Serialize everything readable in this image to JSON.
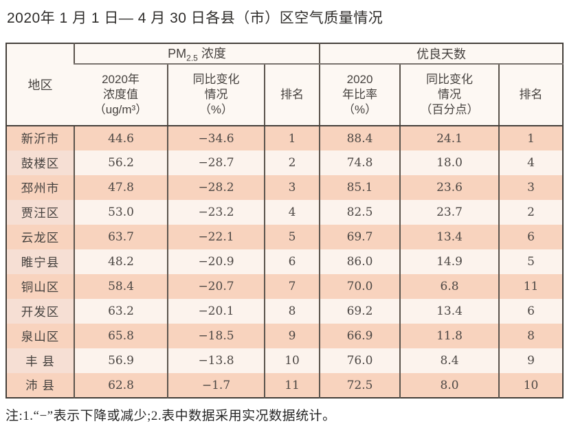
{
  "page": {
    "title": "2020年 1 月 1 日— 4 月 30 日各县（市）区空气质量情况",
    "footnote": "注:1.“−”表示下降或减少;2.表中数据采用实况数据统计。"
  },
  "colors": {
    "outer_border": "#443f3a",
    "inner_border": "#5a534c",
    "header_bg": "#fdf8f3",
    "row_odd_bg": "#f8d3be",
    "row_even_bg": "#fcf3ed",
    "region_even_bg": "#f6dfd4",
    "text": "#45413e"
  },
  "table": {
    "group_headers": {
      "region": "地区",
      "pm25_prefix": "PM",
      "pm25_sub": "2.5",
      "pm25_suffix": " 浓度",
      "good_days": "优良天数"
    },
    "sub_headers": {
      "pm_value": "2020年\n浓度值\n（ug/m³）",
      "pm_change": "同比变化\n情况\n（%）",
      "pm_rank": "排名",
      "good_ratio": "2020\n年比率\n（%）",
      "good_change": "同比变化\n情况\n（百分点）",
      "good_rank": "排名"
    },
    "rows": [
      {
        "region": "新沂市",
        "pm_value": "44.6",
        "pm_change": "−34.6",
        "pm_rank": "1",
        "good_ratio": "88.4",
        "good_change": "24.1",
        "good_rank": "1"
      },
      {
        "region": "鼓楼区",
        "pm_value": "56.2",
        "pm_change": "−28.7",
        "pm_rank": "2",
        "good_ratio": "74.8",
        "good_change": "18.0",
        "good_rank": "4"
      },
      {
        "region": "邳州市",
        "pm_value": "47.8",
        "pm_change": "−28.2",
        "pm_rank": "3",
        "good_ratio": "85.1",
        "good_change": "23.6",
        "good_rank": "3"
      },
      {
        "region": "贾汪区",
        "pm_value": "53.0",
        "pm_change": "−23.2",
        "pm_rank": "4",
        "good_ratio": "82.5",
        "good_change": "23.7",
        "good_rank": "2"
      },
      {
        "region": "云龙区",
        "pm_value": "63.7",
        "pm_change": "−22.1",
        "pm_rank": "5",
        "good_ratio": "69.7",
        "good_change": "13.4",
        "good_rank": "6"
      },
      {
        "region": "睢宁县",
        "pm_value": "48.2",
        "pm_change": "−20.9",
        "pm_rank": "6",
        "good_ratio": "86.0",
        "good_change": "14.9",
        "good_rank": "5"
      },
      {
        "region": "铜山区",
        "pm_value": "58.4",
        "pm_change": "−20.7",
        "pm_rank": "7",
        "good_ratio": "70.0",
        "good_change": "6.8",
        "good_rank": "11"
      },
      {
        "region": "开发区",
        "pm_value": "63.2",
        "pm_change": "−20.1",
        "pm_rank": "8",
        "good_ratio": "69.2",
        "good_change": "13.4",
        "good_rank": "6"
      },
      {
        "region": "泉山区",
        "pm_value": "65.8",
        "pm_change": "−18.5",
        "pm_rank": "9",
        "good_ratio": "66.9",
        "good_change": "11.8",
        "good_rank": "8"
      },
      {
        "region": "丰 县",
        "pm_value": "56.9",
        "pm_change": "−13.8",
        "pm_rank": "10",
        "good_ratio": "76.0",
        "good_change": "8.4",
        "good_rank": "9"
      },
      {
        "region": "沛 县",
        "pm_value": "62.8",
        "pm_change": "−1.7",
        "pm_rank": "11",
        "good_ratio": "72.5",
        "good_change": "8.0",
        "good_rank": "10"
      }
    ]
  }
}
